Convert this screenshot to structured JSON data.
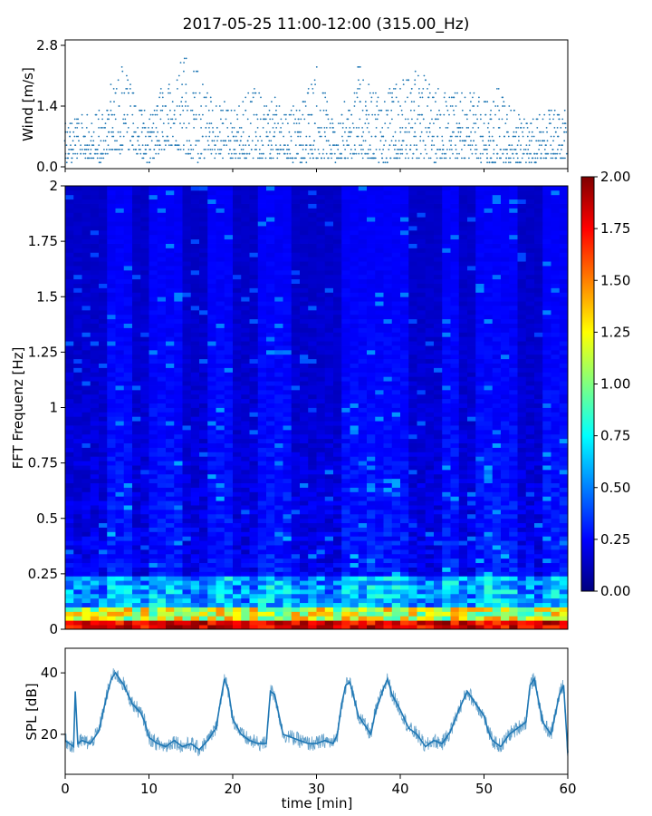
{
  "figure": {
    "title": "2017-05-25 11:00-12:00 (315.00_Hz)"
  },
  "chart_data": [
    {
      "type": "scatter",
      "panel": "wind",
      "ylabel": "Wind [m/s]",
      "xlim": [
        0,
        60
      ],
      "ylim": [
        0.0,
        2.8
      ],
      "yticks": [
        "0.0",
        "1.4",
        "2.8"
      ],
      "y_resolution": 0.1,
      "color": "#1f77b4",
      "envelope": {
        "x": [
          0,
          2,
          4,
          5,
          6,
          7,
          8,
          9,
          10,
          11,
          12,
          13,
          14,
          15,
          16,
          17,
          18,
          19,
          20,
          22,
          24,
          26,
          28,
          30,
          32,
          34,
          35,
          36,
          38,
          40,
          42,
          44,
          46,
          48,
          50,
          52,
          54,
          56,
          58,
          60
        ],
        "min": [
          0.1,
          0.2,
          0.1,
          0.3,
          0.4,
          0.3,
          0.5,
          0.2,
          0.1,
          0.3,
          0.4,
          0.5,
          0.3,
          0.2,
          0.1,
          0.3,
          0.2,
          0.2,
          0.2,
          0.2,
          0.2,
          0.2,
          0.1,
          0.2,
          0.1,
          0.2,
          0.3,
          0.2,
          0.1,
          0.2,
          0.2,
          0.1,
          0.2,
          0.2,
          0.1,
          0.1,
          0.1,
          0.1,
          0.2,
          0.2
        ],
        "max": [
          1.0,
          1.2,
          1.3,
          1.8,
          2.1,
          2.5,
          1.9,
          1.7,
          1.2,
          1.6,
          2.2,
          1.8,
          2.8,
          2.4,
          2.4,
          1.9,
          1.5,
          1.6,
          1.3,
          1.9,
          1.7,
          1.5,
          1.4,
          2.3,
          1.2,
          1.6,
          2.4,
          2.0,
          1.8,
          1.9,
          2.3,
          1.9,
          1.7,
          1.8,
          1.6,
          1.9,
          1.2,
          1.2,
          1.3,
          1.3
        ]
      }
    },
    {
      "type": "heatmap",
      "panel": "spectrogram",
      "ylabel": "FFT Frequenz [Hz]",
      "xlim": [
        0,
        60
      ],
      "ylim": [
        0,
        2
      ],
      "yticks": [
        "0",
        "0.25",
        "0.5",
        "0.75",
        "1",
        "1.25",
        "1.5",
        "1.75",
        "2"
      ],
      "colormap": "jet",
      "clim": [
        0.0,
        2.0
      ],
      "colorbar_ticks": [
        "0.00",
        "0.25",
        "0.50",
        "0.75",
        "1.00",
        "1.25",
        "1.50",
        "1.75",
        "2.00"
      ],
      "time_bins": 60,
      "freq_bins": 100,
      "activity_minutes": [
        5,
        6,
        7,
        10,
        11,
        12,
        13,
        17,
        18,
        19,
        23,
        24,
        25,
        26,
        33,
        34,
        35,
        36,
        37,
        38,
        39,
        40,
        45,
        46,
        49,
        50,
        51,
        52,
        53,
        57,
        58,
        59
      ]
    },
    {
      "type": "line",
      "panel": "spl",
      "xlabel": "time [min]",
      "ylabel": "SPL [dB]",
      "xlim": [
        0,
        60
      ],
      "ylim": [
        7,
        48
      ],
      "xticks": [
        "0",
        "10",
        "20",
        "30",
        "40",
        "50",
        "60"
      ],
      "yticks": [
        "20",
        "40"
      ],
      "color": "#1f77b4",
      "x": [
        0,
        0.5,
        1,
        1.2,
        1.5,
        2,
        3,
        4,
        4.5,
        5,
        5.5,
        6,
        7,
        8,
        9,
        9.5,
        10,
        11,
        12,
        13,
        14,
        15,
        16,
        17,
        18,
        18.5,
        19,
        19.5,
        20,
        21,
        22,
        23,
        24,
        24.5,
        25,
        26,
        27,
        28,
        29,
        30,
        31,
        32,
        32.5,
        33,
        33.5,
        34,
        35,
        36,
        36.5,
        37,
        38,
        38.5,
        39,
        40,
        41,
        42,
        43,
        44,
        45,
        46,
        47,
        48,
        49,
        50,
        50.5,
        51,
        52,
        53,
        54,
        55,
        55.5,
        56,
        57,
        58,
        59,
        59.5,
        60
      ],
      "y": [
        18,
        17,
        16,
        34,
        17,
        18,
        17,
        21,
        27,
        33,
        38,
        40,
        36,
        30,
        27,
        24,
        19,
        17,
        16,
        18,
        16,
        17,
        15,
        18,
        22,
        30,
        38,
        34,
        25,
        20,
        18,
        17,
        17,
        34,
        33,
        20,
        19,
        18,
        17,
        17,
        18,
        17,
        20,
        30,
        36,
        37,
        26,
        22,
        20,
        27,
        35,
        38,
        33,
        28,
        22,
        20,
        16,
        18,
        17,
        21,
        28,
        34,
        30,
        26,
        21,
        18,
        16,
        20,
        22,
        24,
        36,
        38,
        24,
        20,
        33,
        36,
        14
      ]
    }
  ]
}
